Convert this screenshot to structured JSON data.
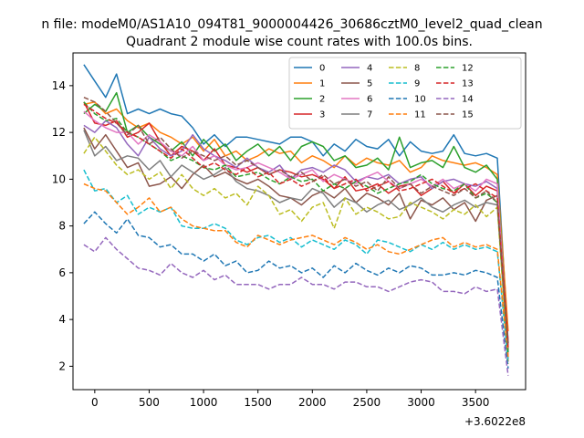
{
  "chart_data": {
    "type": "line",
    "suptitle": "n file: modeM0/AS1A10_094T81_9000004426_30686cztM0_level2_quad_clean",
    "title": "Quadrant 2 module wise count rates with 100.0s bins.",
    "xlabel": "",
    "ylabel": "",
    "x_offset_label": "+3.6022e8",
    "xlim": [
      -200,
      3960
    ],
    "ylim": [
      1.0,
      15.4
    ],
    "xticks": [
      0,
      500,
      1000,
      1500,
      2000,
      2500,
      3000,
      3500
    ],
    "yticks": [
      2,
      4,
      6,
      8,
      10,
      12,
      14
    ],
    "legend_position": "upper right",
    "legend_columns": 4,
    "x": [
      -100,
      0,
      100,
      200,
      300,
      400,
      500,
      600,
      700,
      800,
      900,
      1000,
      1100,
      1200,
      1300,
      1400,
      1500,
      1600,
      1700,
      1800,
      1900,
      2000,
      2100,
      2200,
      2300,
      2400,
      2500,
      2600,
      2700,
      2800,
      2900,
      3000,
      3100,
      3200,
      3300,
      3400,
      3500,
      3600,
      3700,
      3800
    ],
    "series": [
      {
        "name": "0",
        "color": "#1f77b4",
        "dash": "solid",
        "values": [
          14.9,
          14.2,
          13.5,
          14.5,
          12.8,
          13.0,
          12.8,
          13.0,
          12.8,
          12.7,
          12.2,
          11.5,
          11.9,
          11.4,
          11.8,
          11.8,
          11.7,
          11.6,
          11.5,
          11.8,
          11.8,
          11.6,
          11.0,
          11.5,
          11.2,
          11.7,
          11.4,
          11.3,
          11.7,
          11.0,
          11.6,
          11.2,
          11.1,
          11.2,
          11.9,
          11.1,
          11.0,
          11.1,
          10.9,
          3.0
        ]
      },
      {
        "name": "1",
        "color": "#ff7f0e",
        "dash": "solid",
        "values": [
          13.2,
          13.3,
          12.8,
          13.0,
          12.5,
          12.2,
          12.4,
          12.0,
          11.8,
          11.5,
          11.8,
          11.2,
          11.7,
          11.0,
          11.2,
          10.8,
          11.0,
          11.3,
          11.1,
          11.2,
          10.7,
          11.0,
          10.8,
          10.5,
          11.0,
          10.6,
          10.9,
          10.7,
          10.6,
          10.8,
          10.3,
          10.5,
          11.0,
          10.8,
          10.7,
          10.6,
          10.7,
          10.5,
          10.2,
          3.5
        ]
      },
      {
        "name": "2",
        "color": "#2ca02c",
        "dash": "solid",
        "values": [
          12.8,
          13.2,
          12.9,
          13.7,
          12.0,
          12.3,
          11.8,
          11.5,
          11.2,
          11.6,
          11.0,
          11.7,
          11.2,
          11.5,
          10.8,
          11.2,
          11.5,
          11.0,
          11.4,
          10.8,
          11.4,
          11.6,
          11.4,
          10.8,
          11.0,
          10.5,
          10.6,
          10.9,
          10.4,
          11.8,
          10.5,
          10.7,
          10.8,
          10.5,
          11.4,
          10.5,
          10.3,
          10.6,
          10.0,
          2.8
        ]
      },
      {
        "name": "3",
        "color": "#d62728",
        "dash": "solid",
        "values": [
          13.3,
          12.4,
          12.3,
          12.5,
          11.8,
          12.0,
          12.4,
          11.6,
          11.0,
          11.4,
          11.2,
          10.8,
          11.3,
          10.6,
          10.5,
          10.3,
          10.5,
          10.2,
          10.4,
          10.3,
          10.1,
          10.2,
          10.0,
          9.6,
          10.1,
          9.5,
          9.6,
          9.8,
          9.4,
          9.7,
          9.8,
          9.3,
          9.6,
          9.9,
          9.4,
          9.8,
          9.3,
          9.7,
          9.5,
          3.0
        ]
      },
      {
        "name": "4",
        "color": "#9467bd",
        "dash": "solid",
        "values": [
          12.3,
          12.0,
          12.5,
          12.2,
          11.5,
          11.0,
          11.8,
          11.3,
          11.0,
          11.2,
          11.9,
          11.3,
          11.0,
          10.8,
          10.5,
          10.9,
          10.5,
          10.3,
          10.6,
          10.0,
          10.4,
          10.5,
          10.3,
          10.6,
          10.4,
          9.9,
          10.1,
          10.0,
          10.2,
          9.8,
          10.0,
          10.1,
          9.6,
          9.9,
          10.0,
          9.8,
          9.7,
          9.9,
          9.6,
          2.3
        ]
      },
      {
        "name": "5",
        "color": "#8c564b",
        "dash": "solid",
        "values": [
          12.2,
          11.3,
          11.9,
          11.2,
          10.5,
          10.7,
          9.7,
          9.8,
          10.1,
          9.6,
          10.2,
          10.6,
          10.1,
          10.3,
          10.0,
          9.8,
          10.0,
          9.7,
          9.3,
          9.2,
          8.9,
          9.3,
          9.5,
          9.2,
          9.6,
          9.0,
          9.4,
          9.2,
          8.9,
          9.4,
          8.3,
          9.1,
          8.9,
          9.2,
          8.7,
          9.0,
          8.2,
          9.1,
          9.3,
          2.7
        ]
      },
      {
        "name": "6",
        "color": "#e377c2",
        "dash": "solid",
        "values": [
          12.9,
          12.5,
          12.2,
          12.0,
          12.0,
          11.5,
          11.9,
          11.6,
          11.2,
          11.0,
          11.4,
          10.8,
          11.0,
          10.6,
          10.4,
          10.5,
          10.7,
          10.5,
          10.3,
          10.0,
          10.2,
          10.4,
          9.9,
          10.2,
          10.0,
          9.8,
          10.1,
          10.3,
          9.9,
          9.6,
          9.8,
          10.0,
          9.7,
          10.0,
          9.6,
          9.8,
          9.5,
          10.0,
          9.8,
          2.5
        ]
      },
      {
        "name": "7",
        "color": "#7f7f7f",
        "dash": "solid",
        "values": [
          12.1,
          11.0,
          11.4,
          10.8,
          11.0,
          10.9,
          10.4,
          10.8,
          10.1,
          10.6,
          10.3,
          10.0,
          10.2,
          10.5,
          9.9,
          9.6,
          9.5,
          9.3,
          9.0,
          9.2,
          9.1,
          9.6,
          9.4,
          8.8,
          9.2,
          9.0,
          8.6,
          8.9,
          9.1,
          8.7,
          8.9,
          9.2,
          8.8,
          8.6,
          8.9,
          9.1,
          8.8,
          9.0,
          8.9,
          2.2
        ]
      },
      {
        "name": "8",
        "color": "#bcbd22",
        "dash": "dashed",
        "values": [
          11.1,
          11.8,
          11.2,
          10.6,
          10.2,
          10.4,
          10.0,
          10.3,
          9.6,
          10.2,
          9.6,
          9.3,
          9.6,
          9.2,
          9.4,
          8.9,
          9.7,
          9.3,
          8.5,
          8.7,
          8.2,
          8.8,
          9.0,
          7.9,
          9.2,
          8.5,
          8.8,
          8.6,
          8.3,
          8.4,
          9.0,
          8.8,
          8.6,
          8.3,
          8.7,
          8.5,
          8.9,
          8.4,
          8.8,
          2.1
        ]
      },
      {
        "name": "9",
        "color": "#17becf",
        "dash": "dashed",
        "values": [
          10.4,
          9.5,
          9.6,
          9.0,
          9.3,
          8.5,
          8.8,
          8.6,
          8.8,
          8.0,
          7.9,
          7.9,
          8.1,
          7.9,
          7.4,
          7.2,
          7.5,
          7.6,
          7.3,
          7.5,
          7.1,
          7.4,
          7.2,
          7.0,
          7.4,
          7.2,
          6.8,
          7.4,
          7.3,
          7.1,
          6.9,
          7.2,
          7.0,
          7.3,
          7.0,
          7.2,
          7.0,
          7.1,
          6.9,
          2.2
        ]
      },
      {
        "name": "10",
        "color": "#1f77b4",
        "dash": "dashed",
        "values": [
          8.1,
          8.6,
          8.1,
          7.7,
          8.3,
          7.6,
          7.5,
          7.1,
          7.2,
          6.8,
          6.8,
          6.5,
          6.8,
          6.3,
          6.5,
          6.0,
          6.1,
          6.5,
          6.2,
          6.3,
          6.0,
          6.2,
          5.8,
          6.3,
          6.0,
          6.4,
          6.1,
          5.9,
          6.2,
          6.0,
          6.3,
          6.2,
          5.9,
          5.9,
          6.0,
          5.9,
          6.1,
          6.0,
          5.8,
          1.9
        ]
      },
      {
        "name": "11",
        "color": "#ff7f0e",
        "dash": "dashed",
        "values": [
          9.8,
          9.6,
          9.5,
          9.0,
          8.5,
          8.8,
          9.2,
          8.6,
          8.8,
          8.3,
          8.0,
          7.9,
          7.8,
          7.8,
          7.3,
          7.1,
          7.6,
          7.4,
          7.2,
          7.4,
          7.5,
          7.6,
          7.4,
          7.2,
          7.5,
          7.3,
          7.0,
          7.2,
          6.9,
          6.8,
          7.0,
          7.2,
          7.4,
          7.5,
          7.1,
          7.3,
          7.1,
          7.2,
          7.0,
          2.4
        ]
      },
      {
        "name": "12",
        "color": "#2ca02c",
        "dash": "dashed",
        "values": [
          13.3,
          12.8,
          12.5,
          12.6,
          12.0,
          11.8,
          11.5,
          11.2,
          10.8,
          11.0,
          10.8,
          10.5,
          10.4,
          10.6,
          10.1,
          10.2,
          10.3,
          10.0,
          9.8,
          10.1,
          9.9,
          10.0,
          9.5,
          9.8,
          9.6,
          9.9,
          9.7,
          9.4,
          9.6,
          9.8,
          9.9,
          10.2,
          9.8,
          9.6,
          9.5,
          9.8,
          9.2,
          9.4,
          9.0,
          2.6
        ]
      },
      {
        "name": "13",
        "color": "#d62728",
        "dash": "dashed",
        "values": [
          13.2,
          12.9,
          12.6,
          12.4,
          12.0,
          11.8,
          11.5,
          11.2,
          10.9,
          11.3,
          10.9,
          10.5,
          10.7,
          10.4,
          10.2,
          10.5,
          10.1,
          10.3,
          9.8,
          10.0,
          9.7,
          9.9,
          10.1,
          9.6,
          9.8,
          10.0,
          9.5,
          9.7,
          9.9,
          9.5,
          9.6,
          9.8,
          10.0,
          9.7,
          9.4,
          9.6,
          9.8,
          9.5,
          9.2,
          2.8
        ]
      },
      {
        "name": "14",
        "color": "#9467bd",
        "dash": "dashed",
        "values": [
          7.2,
          6.9,
          7.5,
          7.0,
          6.6,
          6.2,
          6.1,
          5.9,
          6.4,
          6.0,
          5.8,
          6.1,
          5.7,
          5.9,
          5.5,
          5.5,
          5.5,
          5.3,
          5.5,
          5.5,
          5.8,
          5.5,
          5.5,
          5.3,
          5.6,
          5.6,
          5.4,
          5.4,
          5.2,
          5.4,
          5.6,
          5.7,
          5.6,
          5.2,
          5.2,
          5.1,
          5.4,
          5.2,
          5.3,
          1.6
        ]
      },
      {
        "name": "15",
        "color": "#8c564b",
        "dash": "dashed",
        "values": [
          13.5,
          13.3,
          12.9,
          12.4,
          11.9,
          12.3,
          11.5,
          11.8,
          11.3,
          10.9,
          11.2,
          11.0,
          10.8,
          11.0,
          10.6,
          10.8,
          10.5,
          10.2,
          10.4,
          10.1,
          10.3,
          9.9,
          10.2,
          9.8,
          10.0,
          9.7,
          9.9,
          9.5,
          10.1,
          9.6,
          9.8,
          9.4,
          9.7,
          9.5,
          9.3,
          9.6,
          9.2,
          9.5,
          9.0,
          2.9
        ]
      }
    ]
  }
}
